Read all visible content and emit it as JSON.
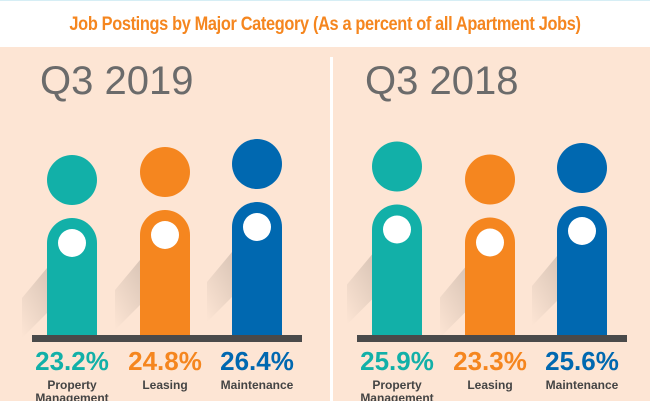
{
  "chart_data": {
    "type": "pictograph",
    "title": "Job Postings by Major Category (As a percent of all Apartment Jobs)",
    "unit": "%",
    "categories": [
      "Property Management",
      "Leasing",
      "Maintenance"
    ],
    "colors": [
      "#12b0a8",
      "#f5861f",
      "#0068b0"
    ],
    "panels": [
      {
        "title": "Q3 2019",
        "values": [
          23.2,
          24.8,
          26.4
        ],
        "labels": [
          "23.2%",
          "24.8%",
          "26.4%"
        ]
      },
      {
        "title": "Q3 2018",
        "values": [
          25.9,
          23.3,
          25.6
        ],
        "labels": [
          "25.9%",
          "23.3%",
          "25.6%"
        ]
      }
    ]
  }
}
